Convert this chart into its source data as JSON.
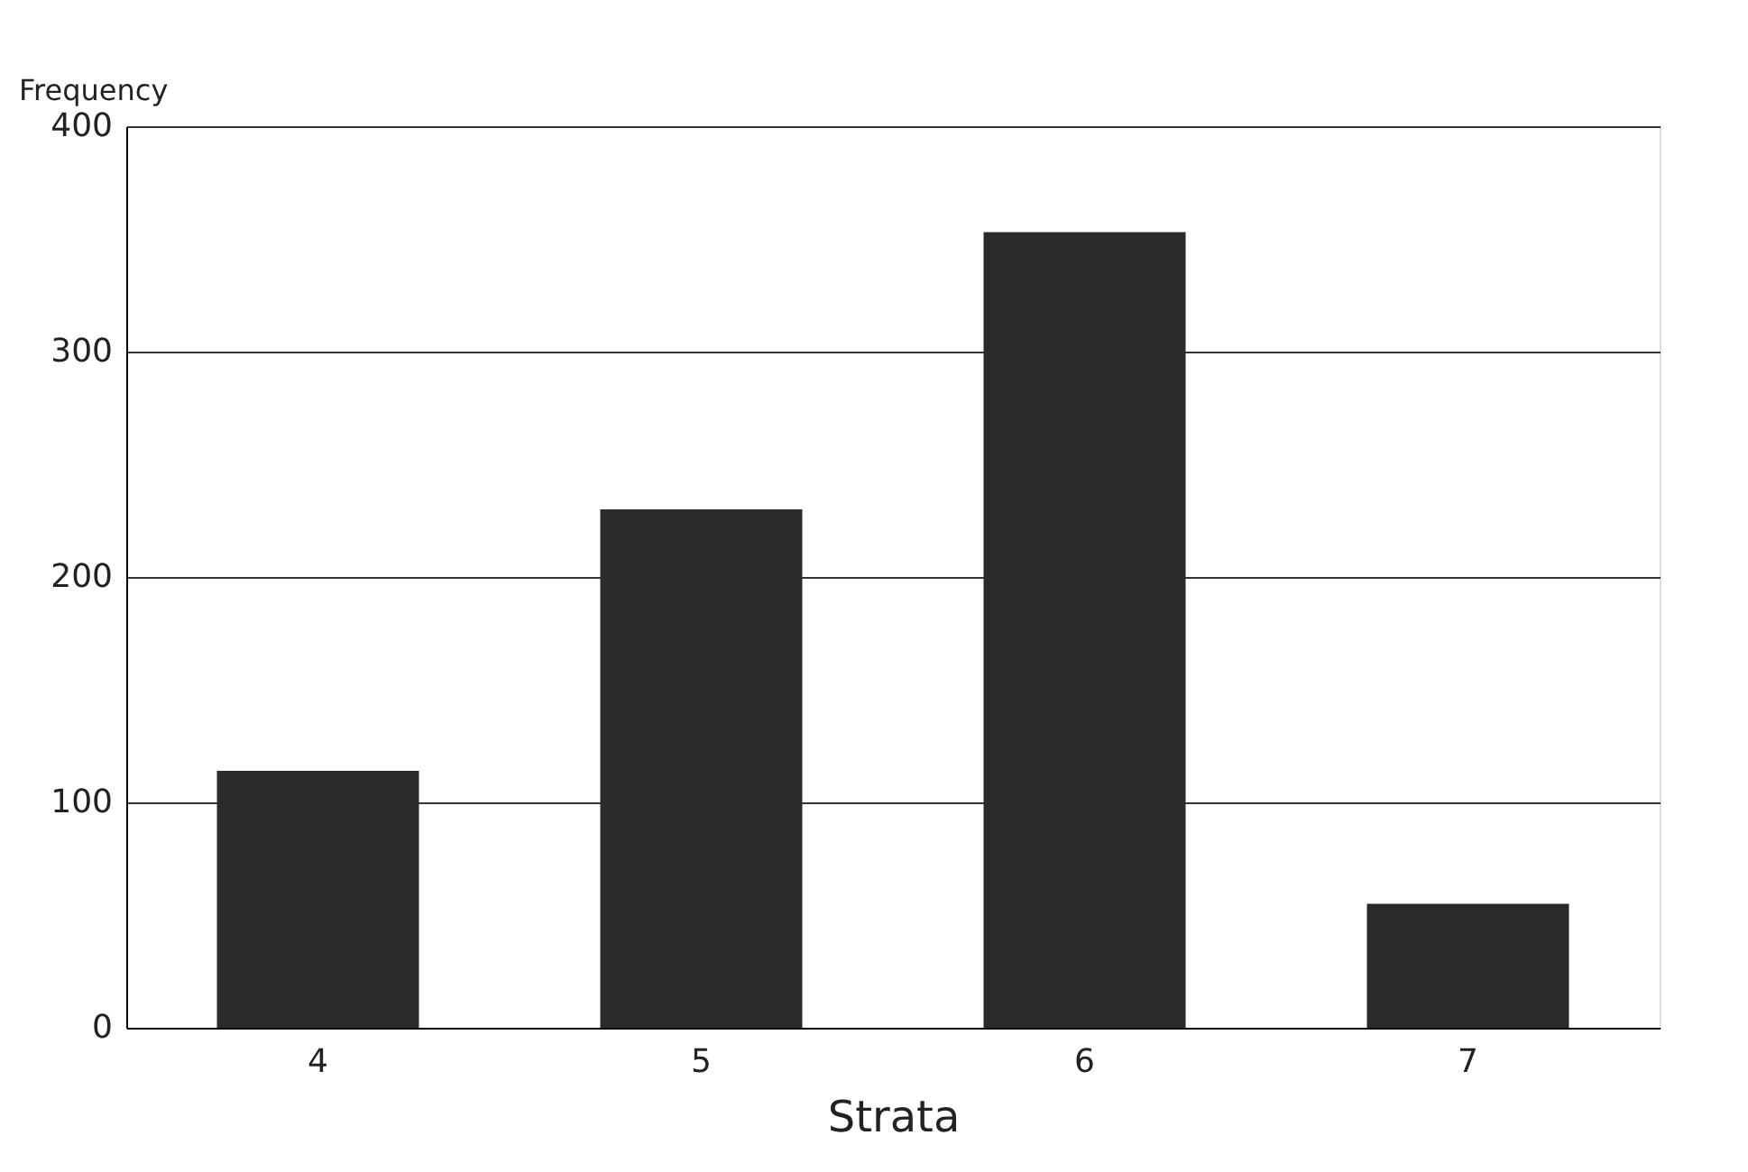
{
  "chart_data": {
    "type": "bar",
    "xlabel": "Strata",
    "ylabel": "Frequency",
    "categories": [
      "4",
      "5",
      "6",
      "7"
    ],
    "values": [
      114,
      230,
      353,
      55
    ],
    "color": "#2b2b2b",
    "ylim": [
      0,
      400
    ],
    "yticks": [
      0,
      100,
      200,
      300,
      400
    ],
    "grid": "y"
  }
}
